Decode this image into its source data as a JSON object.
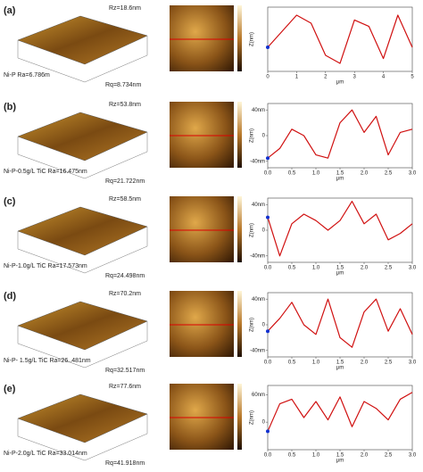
{
  "rows": [
    {
      "label": "(a)",
      "sample": "Ni-P Ra=6.786m",
      "rz": "Rz=18.6nm",
      "rq": "Rq=8.734nm",
      "profile": {
        "type": "line",
        "x_label": "μm",
        "y_label": "Z(nm)",
        "xlim": [
          0,
          5
        ],
        "ylim": [
          -20,
          20
        ],
        "xticks": [
          0,
          1,
          2,
          3,
          4,
          5
        ],
        "x": [
          0,
          0.5,
          1,
          1.5,
          2,
          2.5,
          3,
          3.5,
          4,
          4.5,
          5
        ],
        "values": [
          -5,
          5,
          15,
          10,
          -10,
          -15,
          12,
          8,
          -12,
          15,
          -5
        ]
      }
    },
    {
      "label": "(b)",
      "sample": "Ni-P-0.5g/L TiC Ra=16.475nm",
      "rz": "Rz=53.8nm",
      "rq": "Rq=21.722nm",
      "profile": {
        "type": "line",
        "x_label": "μm",
        "y_label": "Z(nm)",
        "xlim": [
          0,
          3
        ],
        "ylim": [
          -50,
          50
        ],
        "xticks": [
          {
            "value": 0,
            "label": "0.0"
          },
          0.5,
          {
            "value": 1,
            "label": "1.0"
          },
          1.5,
          {
            "value": 2,
            "label": "2.0"
          },
          2.5,
          {
            "value": 3,
            "label": "3.0"
          }
        ],
        "yticks": [
          {
            "value": 40,
            "label": "40nm"
          },
          0,
          {
            "value": -40,
            "label": "-40nm"
          }
        ],
        "x": [
          0,
          0.25,
          0.5,
          0.75,
          1,
          1.25,
          1.5,
          1.75,
          2,
          2.25,
          2.5,
          2.75,
          3
        ],
        "values": [
          -35,
          -20,
          10,
          0,
          -30,
          -35,
          20,
          40,
          5,
          30,
          -30,
          5,
          10
        ]
      }
    },
    {
      "label": "(c)",
      "sample": "Ni-P-1.0g/L TiC Ra=17.573nm",
      "rz": "Rz=58.5nm",
      "rq": "Rq=24.498nm",
      "profile": {
        "type": "line",
        "x_label": "μm",
        "y_label": "Z(nm)",
        "xlim": [
          0,
          3
        ],
        "ylim": [
          -50,
          50
        ],
        "xticks": [
          {
            "value": 0,
            "label": "0.0"
          },
          0.5,
          {
            "value": 1,
            "label": "1.0"
          },
          1.5,
          {
            "value": 2,
            "label": "2.0"
          },
          2.5,
          {
            "value": 3,
            "label": "3.0"
          }
        ],
        "yticks": [
          {
            "value": 40,
            "label": "40nm"
          },
          0,
          {
            "value": -40,
            "label": "-40nm"
          }
        ],
        "x": [
          0,
          0.25,
          0.5,
          0.75,
          1,
          1.25,
          1.5,
          1.75,
          2,
          2.25,
          2.5,
          2.75,
          3
        ],
        "values": [
          20,
          -40,
          10,
          25,
          15,
          0,
          15,
          45,
          10,
          25,
          -15,
          -5,
          10
        ]
      }
    },
    {
      "label": "(d)",
      "sample": "Ni-P- 1.5g/L TiC Ra=26..481nm",
      "rz": "Rz=70.2nm",
      "rq": "Rq=32.517nm",
      "profile": {
        "type": "line",
        "x_label": "μm",
        "y_label": "Z(nm)",
        "xlim": [
          0,
          3
        ],
        "ylim": [
          -50,
          50
        ],
        "xticks": [
          {
            "value": 0,
            "label": "0.0"
          },
          0.5,
          {
            "value": 1,
            "label": "1.0"
          },
          1.5,
          {
            "value": 2,
            "label": "2.0"
          },
          2.5,
          {
            "value": 3,
            "label": "3.0"
          }
        ],
        "yticks": [
          {
            "value": 40,
            "label": "40nm"
          },
          0,
          {
            "value": -40,
            "label": "-40nm"
          }
        ],
        "x": [
          0,
          0.25,
          0.5,
          0.75,
          1,
          1.25,
          1.5,
          1.75,
          2,
          2.25,
          2.5,
          2.75,
          3
        ],
        "values": [
          -10,
          10,
          35,
          0,
          -15,
          40,
          -20,
          -35,
          20,
          40,
          -10,
          25,
          -15
        ]
      }
    },
    {
      "label": "(e)",
      "sample": "Ni-P-2.0g/L TiC Ra=33.014nm",
      "rz": "Rz=77.6nm",
      "rq": "Rq=41.918nm",
      "profile": {
        "type": "line",
        "x_label": "μm",
        "y_label": "Z(nm)",
        "xlim": [
          0,
          3
        ],
        "ylim": [
          -60,
          80
        ],
        "xticks": [
          {
            "value": 0,
            "label": "0.0"
          },
          0.5,
          {
            "value": 1,
            "label": "1.0"
          },
          1.5,
          {
            "value": 2,
            "label": "2.0"
          },
          2.5,
          {
            "value": 3,
            "label": "3.0"
          }
        ],
        "yticks": [
          {
            "value": 60,
            "label": "60nm"
          },
          0
        ],
        "x": [
          0,
          0.25,
          0.5,
          0.75,
          1,
          1.25,
          1.5,
          1.75,
          2,
          2.25,
          2.5,
          2.75,
          3
        ],
        "values": [
          -20,
          40,
          50,
          10,
          45,
          5,
          55,
          -10,
          45,
          30,
          5,
          50,
          65
        ]
      }
    }
  ]
}
